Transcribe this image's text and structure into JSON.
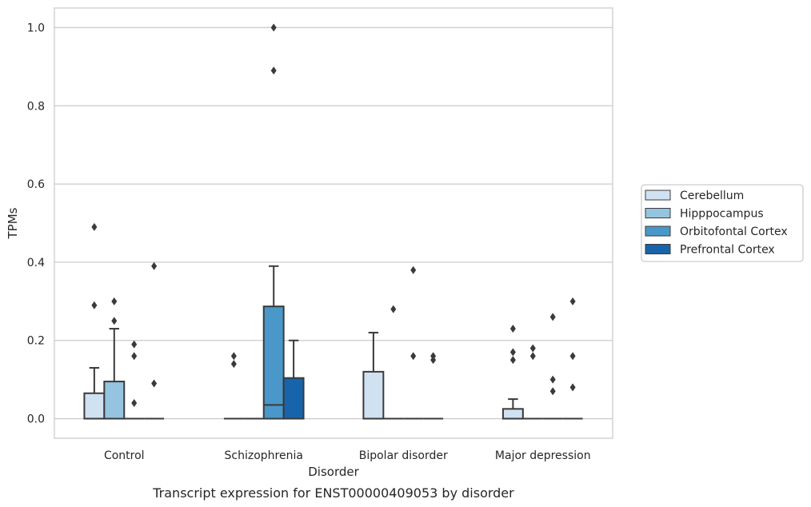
{
  "chart_data": {
    "type": "box",
    "title": "Transcript expression for ENST00000409053 by disorder",
    "xlabel": "Disorder",
    "ylabel": "TPMs",
    "ylim": [
      -0.05,
      1.05
    ],
    "yticks": [
      0.0,
      0.2,
      0.4,
      0.6,
      0.8,
      1.0
    ],
    "ytick_labels": [
      "0.0",
      "0.2",
      "0.4",
      "0.6",
      "0.8",
      "1.0"
    ],
    "grid": true,
    "legend_position": "right",
    "categories": [
      "Control",
      "Schizophrenia",
      "Bipolar disorder",
      "Major depression"
    ],
    "series": [
      {
        "name": "Cerebellum",
        "color": "#d0e1f2",
        "boxes": [
          {
            "q1": 0,
            "median": 0,
            "q3": 0.065,
            "whisker_low": 0,
            "whisker_high": 0.13,
            "outliers": [
              0.29,
              0.49
            ]
          },
          {
            "q1": 0,
            "median": 0,
            "q3": 0,
            "whisker_low": 0,
            "whisker_high": 0,
            "outliers": [
              0.14,
              0.16
            ]
          },
          {
            "q1": 0,
            "median": 0,
            "q3": 0.12,
            "whisker_low": 0,
            "whisker_high": 0.22,
            "outliers": []
          },
          {
            "q1": 0,
            "median": 0,
            "q3": 0.025,
            "whisker_low": 0,
            "whisker_high": 0.05,
            "outliers": [
              0.15,
              0.17,
              0.23
            ]
          }
        ]
      },
      {
        "name": "Hipppocampus",
        "color": "#94c4df",
        "boxes": [
          {
            "q1": 0,
            "median": 0,
            "q3": 0.095,
            "whisker_low": 0,
            "whisker_high": 0.23,
            "outliers": [
              0.25,
              0.3
            ]
          },
          {
            "q1": 0,
            "median": 0,
            "q3": 0,
            "whisker_low": 0,
            "whisker_high": 0,
            "outliers": []
          },
          {
            "q1": 0,
            "median": 0,
            "q3": 0,
            "whisker_low": 0,
            "whisker_high": 0,
            "outliers": [
              0.28
            ]
          },
          {
            "q1": 0,
            "median": 0,
            "q3": 0,
            "whisker_low": 0,
            "whisker_high": 0,
            "outliers": [
              0.16,
              0.18
            ]
          }
        ]
      },
      {
        "name": "Orbitofontal Cortex",
        "color": "#4a98c9",
        "boxes": [
          {
            "q1": 0,
            "median": 0,
            "q3": 0,
            "whisker_low": 0,
            "whisker_high": 0,
            "outliers": [
              0.04,
              0.16,
              0.19
            ]
          },
          {
            "q1": 0,
            "median": 0.035,
            "q3": 0.287,
            "whisker_low": 0,
            "whisker_high": 0.39,
            "outliers": [
              0.89,
              1.0
            ]
          },
          {
            "q1": 0,
            "median": 0,
            "q3": 0,
            "whisker_low": 0,
            "whisker_high": 0,
            "outliers": [
              0.16,
              0.38
            ]
          },
          {
            "q1": 0,
            "median": 0,
            "q3": 0,
            "whisker_low": 0,
            "whisker_high": 0,
            "outliers": [
              0.07,
              0.1,
              0.26
            ]
          }
        ]
      },
      {
        "name": "Prefrontal Cortex",
        "color": "#1764ab",
        "boxes": [
          {
            "q1": 0,
            "median": 0,
            "q3": 0,
            "whisker_low": 0,
            "whisker_high": 0,
            "outliers": [
              0.09,
              0.39
            ]
          },
          {
            "q1": 0,
            "median": 0,
            "q3": 0.104,
            "whisker_low": 0,
            "whisker_high": 0.2,
            "outliers": []
          },
          {
            "q1": 0,
            "median": 0,
            "q3": 0,
            "whisker_low": 0,
            "whisker_high": 0,
            "outliers": [
              0.15,
              0.16
            ]
          },
          {
            "q1": 0,
            "median": 0,
            "q3": 0,
            "whisker_low": 0,
            "whisker_high": 0,
            "outliers": [
              0.08,
              0.16,
              0.3
            ]
          }
        ]
      }
    ]
  }
}
